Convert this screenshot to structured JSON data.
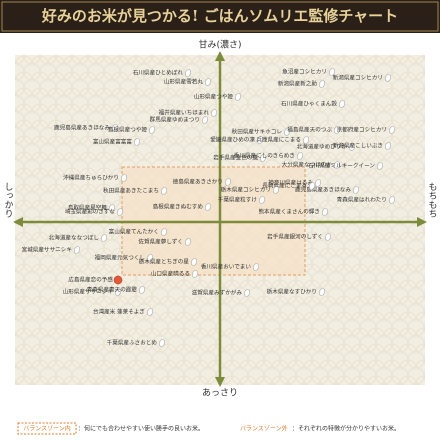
{
  "header": {
    "title": "好みのお米が見つかる! ごはんソムリエ監修チャート"
  },
  "axes": {
    "top": "甘み(濃さ)",
    "bottom": "あっさり",
    "left": "しっかり",
    "right": "もちもち"
  },
  "items": [
    {
      "label": "石川県産ひとめぼれ"
    },
    {
      "label": "山形県産雪若丸"
    },
    {
      "label": "魚沼産コシヒカリ"
    },
    {
      "label": "新潟県産新之助"
    },
    {
      "label": "新潟県産コシヒカリ"
    },
    {
      "label": "山形県産つや姫"
    },
    {
      "label": "石川県産ひゃくまん穀"
    },
    {
      "label": "福井県産いちほまれ"
    },
    {
      "label": "群馬県産ゆめまつり"
    },
    {
      "label": "鹿児島県産あきほなみ"
    },
    {
      "label": "島根県産つや姫"
    },
    {
      "label": "富山県産富富富"
    },
    {
      "label": "愛媛県産ひめの凜"
    },
    {
      "label": "岩手県産金色の風"
    },
    {
      "label": "秋田県産サキホコレ"
    },
    {
      "label": "兵庫県産にこまる"
    },
    {
      "label": "福島県産天のつぶ"
    },
    {
      "label": "京都府産コシヒカリ"
    },
    {
      "label": "北海道産ゆめぴりか"
    },
    {
      "label": "新潟県産こしいぶき"
    },
    {
      "label": "香川県産にしのきらめき"
    },
    {
      "label": "大分県産なつほのか"
    },
    {
      "label": "石川県産ミルキークイーン"
    },
    {
      "label": "神奈川県産はるみ"
    },
    {
      "label": "鹿児島県産あきほなみ"
    },
    {
      "label": "青森県産はれわたり"
    },
    {
      "label": "沖縄県産ちゅらひかり"
    },
    {
      "label": "秋田県産あきたこまち"
    },
    {
      "label": "徳島県産あきさかり"
    },
    {
      "label": "長崎県産にこまる"
    },
    {
      "label": "栃木県産コシヒカリ"
    },
    {
      "label": "鳥取県産星空舞"
    },
    {
      "label": "島根県産きぬむすめ"
    },
    {
      "label": "千葉県産粒すけ"
    },
    {
      "label": "熊本県産くまさんの輝き"
    },
    {
      "label": "埼玉県産彩のきずな"
    },
    {
      "label": "北海道産ななつぼし"
    },
    {
      "label": "富山県産てんたかく"
    },
    {
      "label": "佐賀県産夢しずく"
    },
    {
      "label": "福岡県産元気つくし"
    },
    {
      "label": "岩手県産銀河のしずく"
    },
    {
      "label": "宮城県産ササニシキ"
    },
    {
      "label": "栃木県産とちぎの星"
    },
    {
      "label": "山口県産晴るる"
    },
    {
      "label": "香川県産おいでまい"
    },
    {
      "label": "広島県産恋の予感"
    },
    {
      "label": "山形県産ササニシキ"
    },
    {
      "label": "青森県産青天の霹靂"
    },
    {
      "label": "滋賀県産みずかがみ"
    },
    {
      "label": "栃木県産なすひかり"
    },
    {
      "label": "台湾産米 蓬莱そよぎ"
    },
    {
      "label": "千葉県産ふさおとめ"
    }
  ],
  "legend": {
    "inside_tag": "バランスゾーン内",
    "inside_text": "：何にでも合わせやすい使い勝手の良いお米。",
    "outside_tag": "バランスゾーン外",
    "outside_text": "：それぞれの特徴が分かりやすいお米。"
  }
}
